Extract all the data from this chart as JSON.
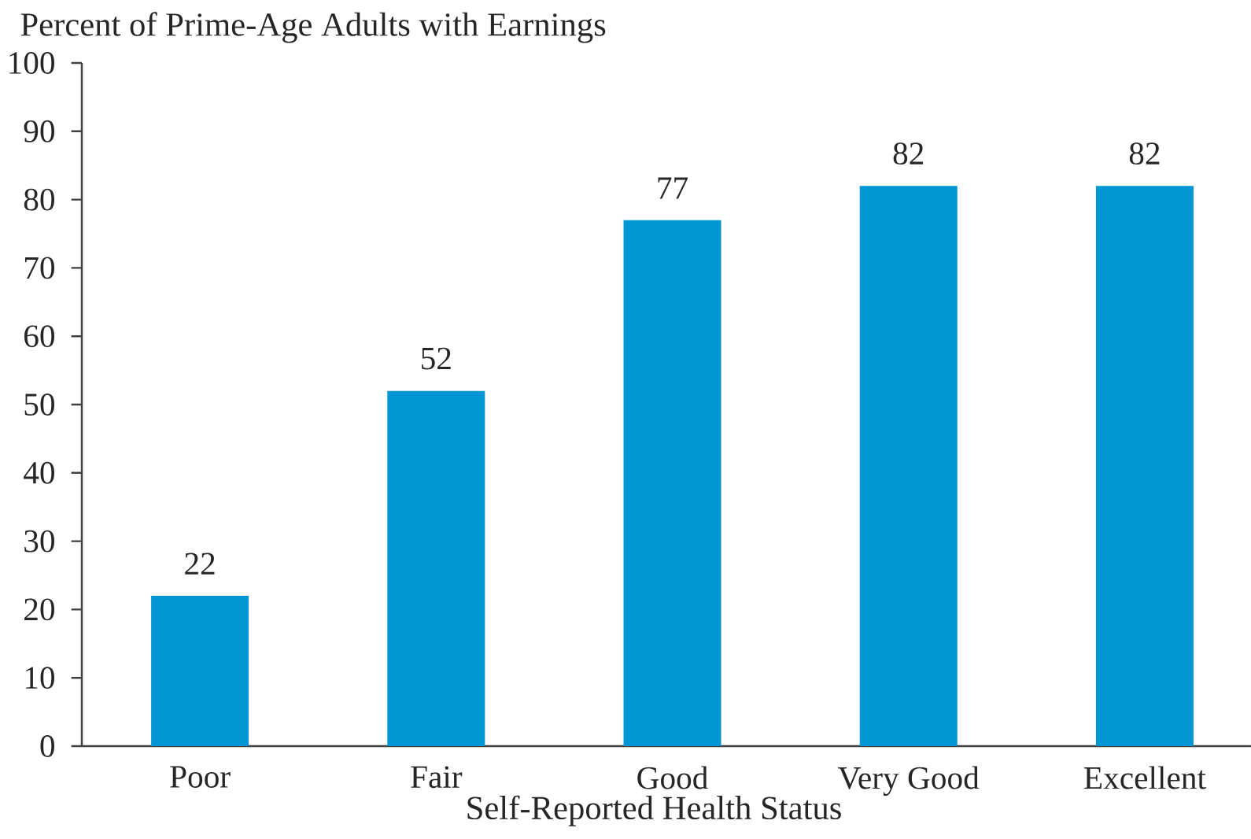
{
  "chart_data": {
    "type": "bar",
    "ylabel": "Percent of Prime-Age Adults with Earnings",
    "xlabel": "Self-Reported Health Status",
    "categories": [
      "Poor",
      "Fair",
      "Good",
      "Very Good",
      "Excellent"
    ],
    "values": [
      22,
      52,
      77,
      82,
      82
    ],
    "color": "#0096d6",
    "ylim": [
      0,
      100
    ],
    "yticks": [
      0,
      10,
      20,
      30,
      40,
      50,
      60,
      70,
      80,
      90,
      100
    ],
    "data_labels": true
  }
}
